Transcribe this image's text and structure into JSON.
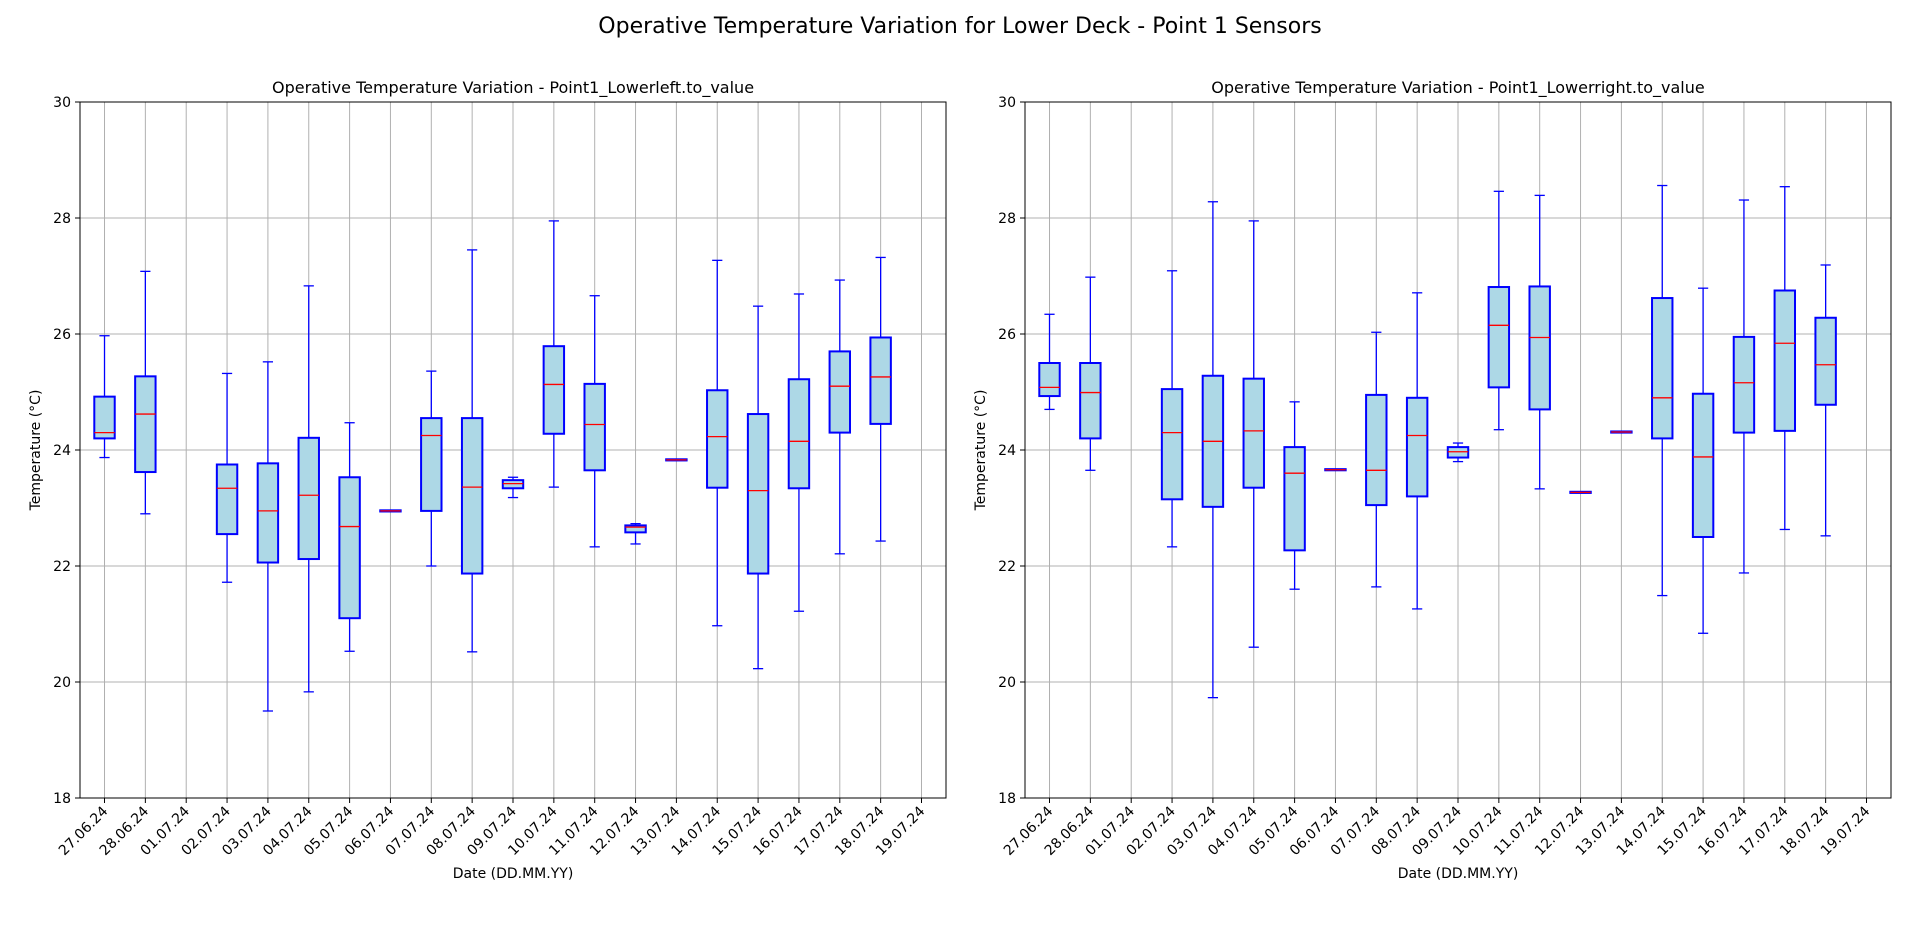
{
  "figure": {
    "title": "Operative Temperature Variation for Lower Deck - Point 1 Sensors"
  },
  "colors": {
    "box_fill": "#add8e6",
    "box_edge": "#0000ff",
    "median": "#ff0000",
    "grid": "#b0b0b0"
  },
  "chart_data": [
    {
      "type": "box",
      "title": "Operative Temperature Variation - Point1_Lowerleft.to_value",
      "xlabel": "Date (DD.MM.YY)",
      "ylabel": "Temperature (°C)",
      "ylim": [
        18,
        30
      ],
      "yticks": [
        18,
        20,
        22,
        24,
        26,
        28,
        30
      ],
      "grid": true,
      "categories": [
        "27.06.24",
        "28.06.24",
        "01.07.24",
        "02.07.24",
        "03.07.24",
        "04.07.24",
        "05.07.24",
        "06.07.24",
        "07.07.24",
        "08.07.24",
        "09.07.24",
        "10.07.24",
        "11.07.24",
        "12.07.24",
        "13.07.24",
        "14.07.24",
        "15.07.24",
        "16.07.24",
        "17.07.24",
        "18.07.24",
        "19.07.24"
      ],
      "boxes": [
        {
          "whislo": 23.87,
          "q1": 24.2,
          "med": 24.3,
          "q3": 24.92,
          "whishi": 25.97
        },
        {
          "whislo": 22.9,
          "q1": 23.62,
          "med": 24.62,
          "q3": 25.27,
          "whishi": 27.08
        },
        null,
        {
          "whislo": 21.72,
          "q1": 22.55,
          "med": 23.34,
          "q3": 23.75,
          "whishi": 25.32
        },
        {
          "whislo": 19.5,
          "q1": 22.06,
          "med": 22.95,
          "q3": 23.77,
          "whishi": 25.52
        },
        {
          "whislo": 19.83,
          "q1": 22.12,
          "med": 23.22,
          "q3": 24.21,
          "whishi": 26.83
        },
        {
          "whislo": 20.53,
          "q1": 21.1,
          "med": 22.68,
          "q3": 23.53,
          "whishi": 24.47
        },
        {
          "whislo": 22.94,
          "q1": 22.94,
          "med": 22.95,
          "q3": 22.96,
          "whishi": 22.96
        },
        {
          "whislo": 22.0,
          "q1": 22.95,
          "med": 24.25,
          "q3": 24.55,
          "whishi": 25.36
        },
        {
          "whislo": 20.52,
          "q1": 21.87,
          "med": 23.36,
          "q3": 24.55,
          "whishi": 27.45
        },
        {
          "whislo": 23.18,
          "q1": 23.34,
          "med": 23.42,
          "q3": 23.48,
          "whishi": 23.53
        },
        {
          "whislo": 23.36,
          "q1": 24.28,
          "med": 25.13,
          "q3": 25.79,
          "whishi": 27.95
        },
        {
          "whislo": 22.33,
          "q1": 23.65,
          "med": 24.44,
          "q3": 25.14,
          "whishi": 26.66
        },
        {
          "whislo": 22.38,
          "q1": 22.58,
          "med": 22.67,
          "q3": 22.7,
          "whishi": 22.73
        },
        {
          "whislo": 23.82,
          "q1": 23.82,
          "med": 23.83,
          "q3": 23.84,
          "whishi": 23.84
        },
        {
          "whislo": 20.97,
          "q1": 23.35,
          "med": 24.23,
          "q3": 25.03,
          "whishi": 27.27
        },
        {
          "whislo": 20.23,
          "q1": 21.87,
          "med": 23.3,
          "q3": 24.62,
          "whishi": 26.48
        },
        {
          "whislo": 21.22,
          "q1": 23.34,
          "med": 24.15,
          "q3": 25.22,
          "whishi": 26.69
        },
        {
          "whislo": 22.21,
          "q1": 24.3,
          "med": 25.1,
          "q3": 25.7,
          "whishi": 26.93
        },
        {
          "whislo": 22.43,
          "q1": 24.45,
          "med": 25.26,
          "q3": 25.94,
          "whishi": 27.32
        },
        null
      ]
    },
    {
      "type": "box",
      "title": "Operative Temperature Variation - Point1_Lowerright.to_value",
      "xlabel": "Date (DD.MM.YY)",
      "ylabel": "Temperature (°C)",
      "ylim": [
        18,
        30
      ],
      "yticks": [
        18,
        20,
        22,
        24,
        26,
        28,
        30
      ],
      "grid": true,
      "categories": [
        "27.06.24",
        "28.06.24",
        "01.07.24",
        "02.07.24",
        "03.07.24",
        "04.07.24",
        "05.07.24",
        "06.07.24",
        "07.07.24",
        "08.07.24",
        "09.07.24",
        "10.07.24",
        "11.07.24",
        "12.07.24",
        "13.07.24",
        "14.07.24",
        "15.07.24",
        "16.07.24",
        "17.07.24",
        "18.07.24",
        "19.07.24"
      ],
      "boxes": [
        {
          "whislo": 24.7,
          "q1": 24.93,
          "med": 25.08,
          "q3": 25.5,
          "whishi": 26.34
        },
        {
          "whislo": 23.65,
          "q1": 24.2,
          "med": 24.99,
          "q3": 25.5,
          "whishi": 26.98
        },
        null,
        {
          "whislo": 22.33,
          "q1": 23.15,
          "med": 24.3,
          "q3": 25.05,
          "whishi": 27.09
        },
        {
          "whislo": 19.73,
          "q1": 23.02,
          "med": 24.15,
          "q3": 25.28,
          "whishi": 28.28
        },
        {
          "whislo": 20.6,
          "q1": 23.35,
          "med": 24.33,
          "q3": 25.23,
          "whishi": 27.95
        },
        {
          "whislo": 21.6,
          "q1": 22.27,
          "med": 23.6,
          "q3": 24.05,
          "whishi": 24.83
        },
        {
          "whislo": 23.65,
          "q1": 23.65,
          "med": 23.66,
          "q3": 23.67,
          "whishi": 23.67
        },
        {
          "whislo": 21.64,
          "q1": 23.05,
          "med": 23.65,
          "q3": 24.95,
          "whishi": 26.03
        },
        {
          "whislo": 21.26,
          "q1": 23.2,
          "med": 24.25,
          "q3": 24.9,
          "whishi": 26.71
        },
        {
          "whislo": 23.8,
          "q1": 23.87,
          "med": 23.97,
          "q3": 24.05,
          "whishi": 24.12
        },
        {
          "whislo": 24.35,
          "q1": 25.08,
          "med": 26.15,
          "q3": 26.81,
          "whishi": 28.46
        },
        {
          "whislo": 23.33,
          "q1": 24.7,
          "med": 25.94,
          "q3": 26.82,
          "whishi": 28.39
        },
        {
          "whislo": 23.26,
          "q1": 23.26,
          "med": 23.27,
          "q3": 23.28,
          "whishi": 23.28
        },
        {
          "whislo": 24.3,
          "q1": 24.3,
          "med": 24.31,
          "q3": 24.32,
          "whishi": 24.32
        },
        {
          "whislo": 21.49,
          "q1": 24.2,
          "med": 24.9,
          "q3": 26.62,
          "whishi": 28.56
        },
        {
          "whislo": 20.84,
          "q1": 22.5,
          "med": 23.88,
          "q3": 24.97,
          "whishi": 26.79
        },
        {
          "whislo": 21.88,
          "q1": 24.3,
          "med": 25.16,
          "q3": 25.95,
          "whishi": 28.31
        },
        {
          "whislo": 22.63,
          "q1": 24.33,
          "med": 25.84,
          "q3": 26.75,
          "whishi": 28.54
        },
        {
          "whislo": 22.52,
          "q1": 24.78,
          "med": 25.47,
          "q3": 26.28,
          "whishi": 27.19
        },
        null
      ]
    }
  ]
}
